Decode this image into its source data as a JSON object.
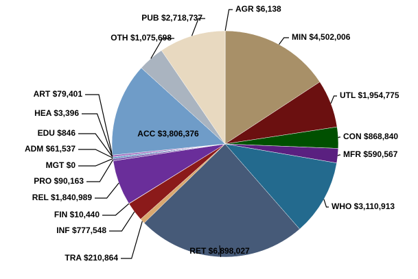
{
  "chart_data": {
    "type": "pie",
    "categories": [
      "AGR",
      "MIN",
      "UTL",
      "CON",
      "MFR",
      "WHO",
      "RET",
      "TRA",
      "INF",
      "FIN",
      "REL",
      "PRO",
      "MGT",
      "ADM",
      "EDU",
      "HEA",
      "ART",
      "ACC",
      "OTH",
      "PUB"
    ],
    "values": [
      6138,
      4502006,
      1954775,
      868840,
      590567,
      3110913,
      6898027,
      210864,
      777548,
      10440,
      1840989,
      90163,
      0,
      61537,
      846,
      3396,
      79401,
      3806376,
      1075698,
      2718737
    ],
    "value_labels": [
      "$6,138",
      "$4,502,006",
      "$1,954,775",
      "$868,840",
      "$590,567",
      "$3,110,913",
      "$6,898,027",
      "$210,864",
      "$777,548",
      "$10,440",
      "$1,840,989",
      "$90,163",
      "$0",
      "$61,537",
      "$846",
      "$3,396",
      "$79,401",
      "$3,806,376",
      "$1,075,698",
      "$2,718,737"
    ],
    "colors": [
      "#c8a070",
      "#a89068",
      "#6b1010",
      "#005000",
      "#5a2080",
      "#236a8e",
      "#465a78",
      "#d9a870",
      "#8b1a1a",
      "#c07030",
      "#6a2e9a",
      "#8060b0",
      "#888888",
      "#5090c0",
      "#d0c0a0",
      "#b04040",
      "#a070c0",
      "#6f9cc8",
      "#aab4c0",
      "#e8d9c0"
    ]
  }
}
